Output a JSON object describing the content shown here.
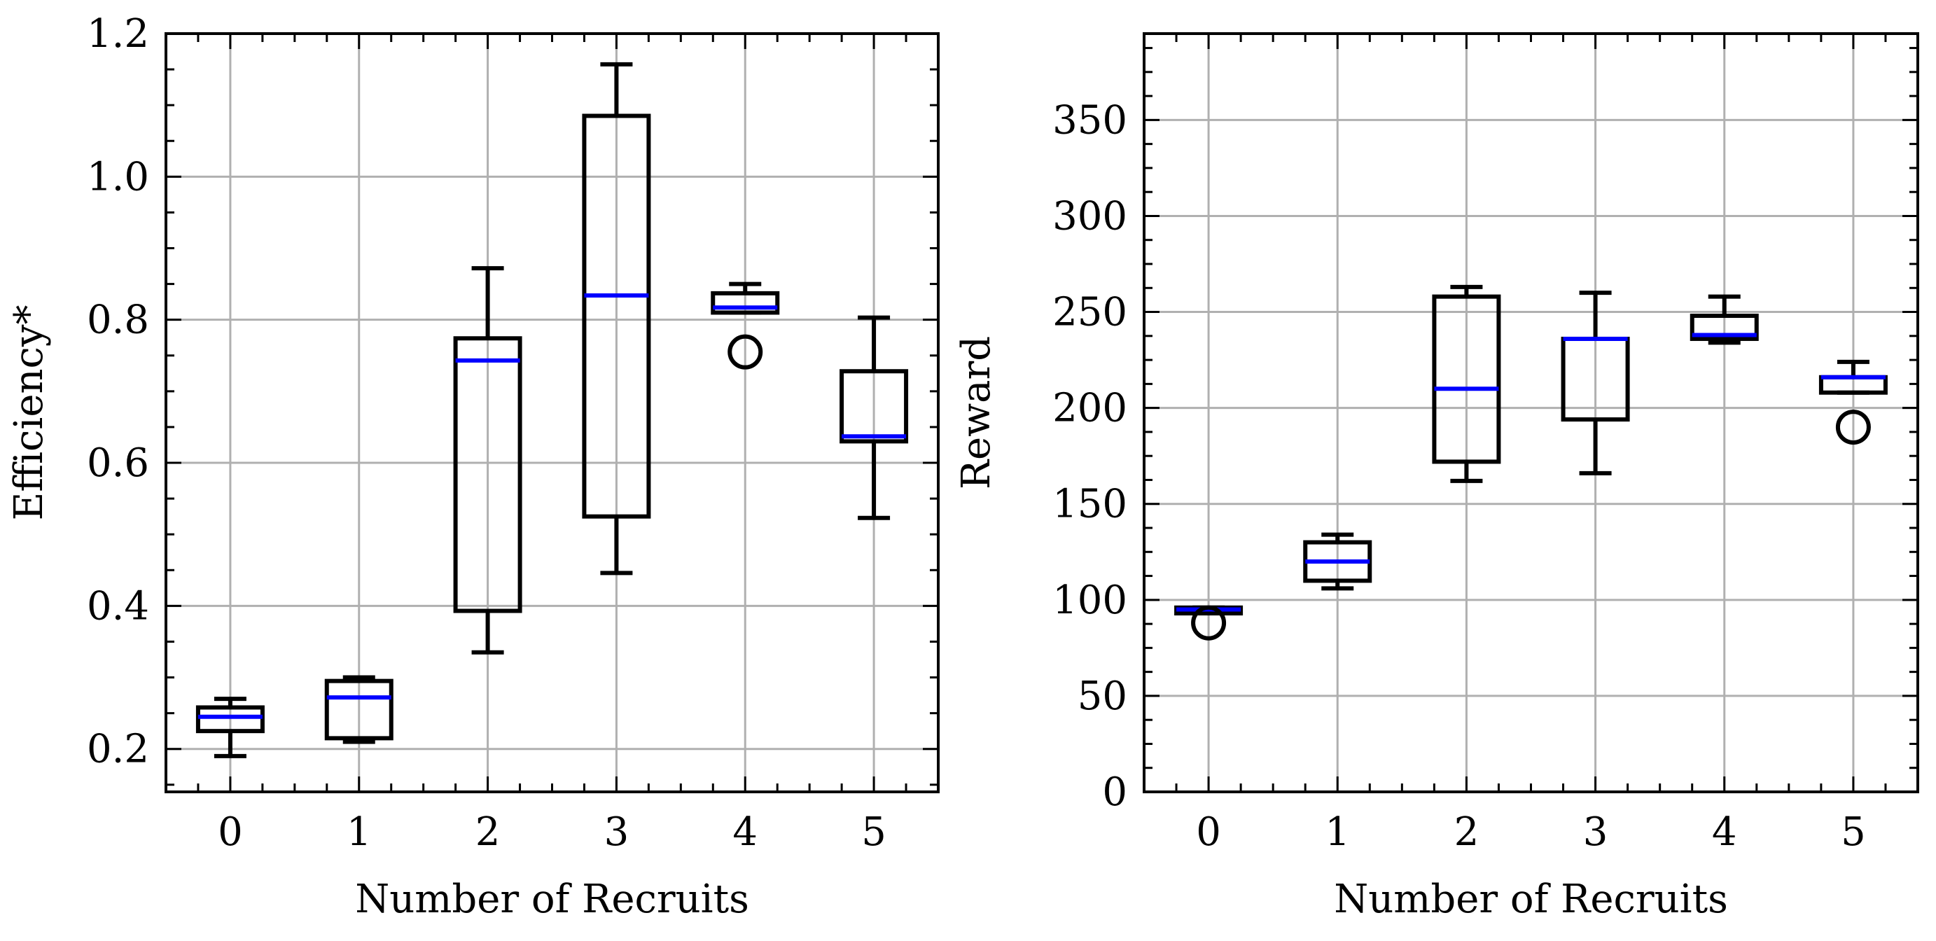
{
  "chart_data": [
    {
      "type": "box",
      "xlabel": "Number of Recruits",
      "ylabel": "Efficiency*",
      "categories": [
        "0",
        "1",
        "2",
        "3",
        "4",
        "5"
      ],
      "ylim": [
        0.14,
        1.2
      ],
      "yticks": [
        0.2,
        0.4,
        0.6,
        0.8,
        1.0,
        1.2
      ],
      "ytick_labels": [
        "0.2",
        "0.4",
        "0.6",
        "0.8",
        "1.0",
        "1.2"
      ],
      "grid": true,
      "median_color": "#0000ff",
      "boxes": [
        {
          "category": "0",
          "whislo": 0.19,
          "q1": 0.225,
          "med": 0.245,
          "q3": 0.258,
          "whishi": 0.27,
          "fliers": []
        },
        {
          "category": "1",
          "whislo": 0.21,
          "q1": 0.215,
          "med": 0.272,
          "q3": 0.295,
          "whishi": 0.3,
          "fliers": []
        },
        {
          "category": "2",
          "whislo": 0.335,
          "q1": 0.393,
          "med": 0.743,
          "q3": 0.774,
          "whishi": 0.872,
          "fliers": []
        },
        {
          "category": "3",
          "whislo": 0.446,
          "q1": 0.525,
          "med": 0.834,
          "q3": 1.085,
          "whishi": 1.157,
          "fliers": []
        },
        {
          "category": "4",
          "whislo": 0.81,
          "q1": 0.81,
          "med": 0.817,
          "q3": 0.837,
          "whishi": 0.85,
          "fliers": [
            0.755
          ]
        },
        {
          "category": "5",
          "whislo": 0.523,
          "q1": 0.63,
          "med": 0.637,
          "q3": 0.728,
          "whishi": 0.803,
          "fliers": []
        }
      ]
    },
    {
      "type": "box",
      "xlabel": "Number of Recruits",
      "ylabel": "Reward",
      "categories": [
        "0",
        "1",
        "2",
        "3",
        "4",
        "5"
      ],
      "ylim": [
        0,
        395
      ],
      "yticks": [
        0,
        50,
        100,
        150,
        200,
        250,
        300,
        350
      ],
      "ytick_labels": [
        "0",
        "50",
        "100",
        "150",
        "200",
        "250",
        "300",
        "350"
      ],
      "grid": true,
      "median_color": "#0000ff",
      "boxes": [
        {
          "category": "0",
          "whislo": 93,
          "q1": 93,
          "med": 95,
          "q3": 96,
          "whishi": 96,
          "fliers": [
            88
          ]
        },
        {
          "category": "1",
          "whislo": 106,
          "q1": 110,
          "med": 120,
          "q3": 130,
          "whishi": 134,
          "fliers": []
        },
        {
          "category": "2",
          "whislo": 162,
          "q1": 172,
          "med": 210,
          "q3": 258,
          "whishi": 263,
          "fliers": []
        },
        {
          "category": "3",
          "whislo": 166,
          "q1": 194,
          "med": 236,
          "q3": 236,
          "whishi": 260,
          "fliers": []
        },
        {
          "category": "4",
          "whislo": 234,
          "q1": 236,
          "med": 238,
          "q3": 248,
          "whishi": 258,
          "fliers": []
        },
        {
          "category": "5",
          "whislo": 208,
          "q1": 208,
          "med": 216,
          "q3": 216,
          "whishi": 224,
          "fliers": [
            190
          ]
        }
      ]
    }
  ]
}
